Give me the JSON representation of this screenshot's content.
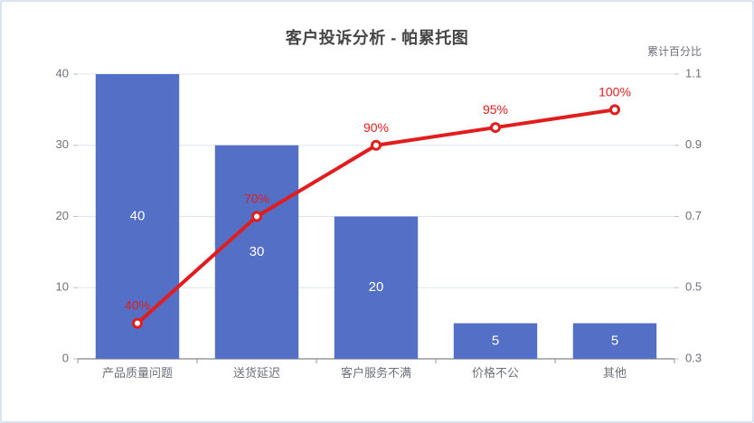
{
  "chart_data": {
    "type": "bar",
    "subtype": "pareto (bar + cumulative line)",
    "title": "客户投诉分析 - 帕累托图",
    "categories": [
      "产品质量问题",
      "送货延迟",
      "客户服务不满",
      "价格不公",
      "其他"
    ],
    "series": [
      {
        "name": "complaint-count-bars",
        "type": "bar",
        "values": [
          40,
          30,
          20,
          5,
          5
        ],
        "value_labels": [
          "40",
          "30",
          "20",
          "5",
          "5"
        ],
        "color": "#5470c6",
        "label_color": "#ffffff"
      },
      {
        "name": "cumulative-percentage-line",
        "type": "line",
        "values": [
          0.4,
          0.7,
          0.9,
          0.95,
          1.0
        ],
        "point_labels": [
          "40%",
          "70%",
          "90%",
          "95%",
          "100%"
        ],
        "color": "#e11d1d",
        "marker": "hollow-circle"
      }
    ],
    "left_axis": {
      "min": 0,
      "max": 40,
      "tick_labels": [
        "0",
        "10",
        "20",
        "30",
        "40"
      ]
    },
    "right_axis": {
      "name": "累计百分比",
      "min": 0.3,
      "max": 1.1,
      "tick_labels": [
        "0.3",
        "0.5",
        "0.7",
        "0.9",
        "1.1"
      ]
    },
    "grid": true,
    "legend": "none"
  },
  "colors": {
    "title": "#464646",
    "axis_text": "#6e7079",
    "grid_line": "#e0e6f1",
    "axis_line": "#999999",
    "tick_mark": "#b9c2cf",
    "card_border": "#dbe3f2"
  }
}
